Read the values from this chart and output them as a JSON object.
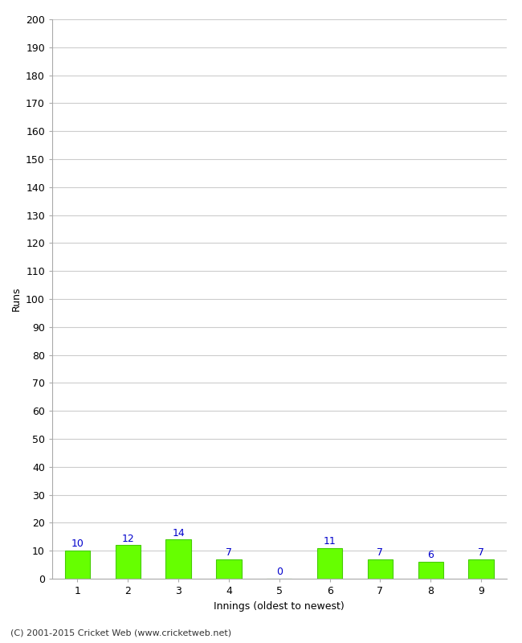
{
  "categories": [
    "1",
    "2",
    "3",
    "4",
    "5",
    "6",
    "7",
    "8",
    "9"
  ],
  "values": [
    10,
    12,
    14,
    7,
    0,
    11,
    7,
    6,
    7
  ],
  "bar_color": "#66ff00",
  "bar_edge_color": "#44cc00",
  "label_color": "#0000cc",
  "xlabel": "Innings (oldest to newest)",
  "ylabel": "Runs",
  "ylim": [
    0,
    200
  ],
  "yticks": [
    0,
    10,
    20,
    30,
    40,
    50,
    60,
    70,
    80,
    90,
    100,
    110,
    120,
    130,
    140,
    150,
    160,
    170,
    180,
    190,
    200
  ],
  "ytick_labels": [
    "0",
    "10",
    "20",
    "30",
    "40",
    "50",
    "60",
    "70",
    "80",
    "90",
    "100",
    "110",
    "120",
    "130",
    "140",
    "150",
    "160",
    "170",
    "180",
    "190",
    "200"
  ],
  "label_fontsize": 9,
  "axis_label_fontsize": 9,
  "tick_fontsize": 9,
  "footer_text": "(C) 2001-2015 Cricket Web (www.cricketweb.net)",
  "background_color": "#ffffff",
  "grid_color": "#cccccc",
  "bar_width": 0.5
}
